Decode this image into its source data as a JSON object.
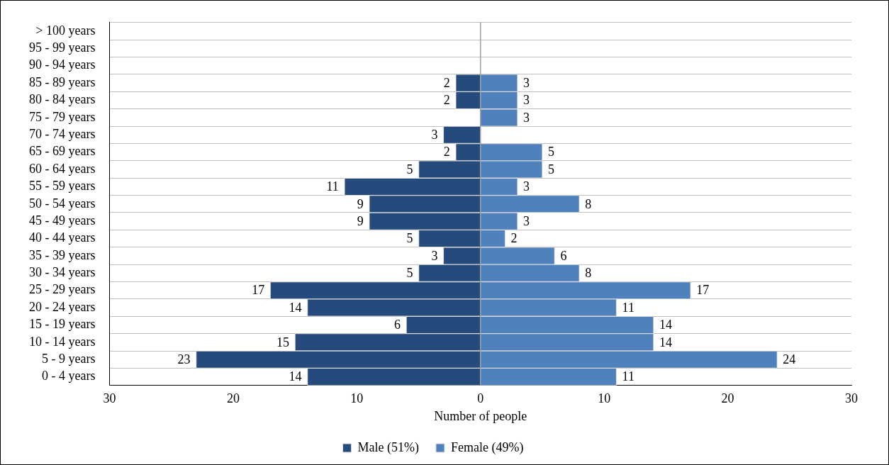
{
  "chart_data": {
    "type": "bar",
    "orientation": "horizontal",
    "xlabel": "Number of people",
    "categories": [
      "> 100 years",
      "95 - 99 years",
      "90 - 94 years",
      "85 - 89 years",
      "80 - 84 years",
      "75 - 79 years",
      "70 - 74 years",
      "65 - 69 years",
      "60 - 64 years",
      "55 - 59 years",
      "50 - 54 years",
      "45 - 49 years",
      "40 - 44 years",
      "35 - 39 years",
      "30 - 34 years",
      "25 - 29 years",
      "20 - 24 years",
      "15 - 19 years",
      "10 - 14 years",
      "5 - 9 years",
      "0 - 4 years"
    ],
    "series": [
      {
        "name": "Male (51%)",
        "color": "#254b7d",
        "values": [
          null,
          null,
          null,
          2,
          2,
          null,
          3,
          2,
          5,
          11,
          9,
          9,
          5,
          3,
          5,
          17,
          14,
          6,
          15,
          23,
          14
        ],
        "base": [
          null,
          null,
          null,
          -2,
          -2,
          null,
          -3,
          -2,
          -5,
          -11,
          -9,
          -9,
          -5,
          -3,
          -5,
          -17,
          -14,
          -6,
          -15,
          -23,
          -14
        ],
        "value_labels": [
          null,
          null,
          null,
          "2",
          "2",
          null,
          "3",
          "2",
          "5",
          "11",
          "9",
          "9",
          "5",
          "3",
          "5",
          "17",
          "14",
          "6",
          "15",
          "23",
          "14"
        ]
      },
      {
        "name": "Female (49%)",
        "color": "#4f81bd",
        "values": [
          null,
          null,
          null,
          3,
          3,
          3,
          null,
          5,
          5,
          3,
          8,
          3,
          2,
          6,
          8,
          17,
          11,
          14,
          14,
          24,
          11
        ],
        "value_labels": [
          null,
          null,
          null,
          "3",
          "3",
          "3",
          null,
          "5",
          "5",
          "3",
          "8",
          "3",
          "2",
          "6",
          "8",
          "17",
          "11",
          "14",
          "14",
          "24",
          "11"
        ]
      }
    ],
    "xlim": [
      -30,
      30
    ],
    "xticks": [
      {
        "value": -30,
        "label": "30"
      },
      {
        "value": -20,
        "label": "20"
      },
      {
        "value": -10,
        "label": "10"
      },
      0,
      10,
      20,
      30
    ],
    "ref_lines": [
      {
        "axis": "x",
        "value": 0,
        "color": "#a0a0a0"
      }
    ],
    "grid": "y",
    "legend": "bottom"
  }
}
